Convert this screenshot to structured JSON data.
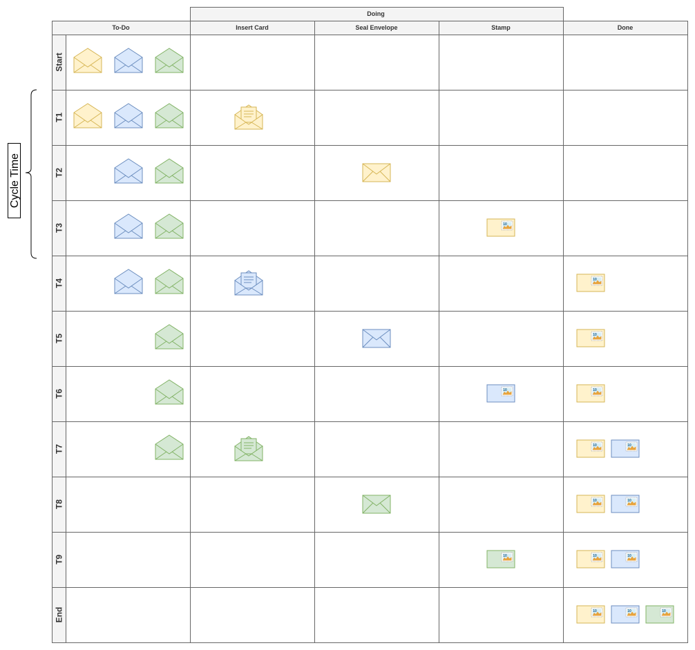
{
  "header": {
    "doing_label": "Doing",
    "columns": [
      "To-Do",
      "Insert Card",
      "Seal Envelope",
      "Stamp",
      "Done"
    ]
  },
  "cycle_time_label": "Cycle Time",
  "stamp_value": "10",
  "colors": {
    "yellow": {
      "fill": "#fff2cc",
      "stroke": "#d6b656"
    },
    "blue": {
      "fill": "#dae8fc",
      "stroke": "#6c8ebf"
    },
    "green": {
      "fill": "#d5e8d4",
      "stroke": "#82b366"
    },
    "grid": "#666666",
    "header_bg": "#f4f4f4"
  },
  "rows": [
    {
      "label": "Start",
      "todo": [
        "yellow",
        "blue",
        "green"
      ],
      "insert": null,
      "seal": null,
      "stamp": null,
      "done": []
    },
    {
      "label": "T1",
      "todo": [
        "yellow",
        "blue",
        "green"
      ],
      "insert": "yellow",
      "seal": null,
      "stamp": null,
      "done": []
    },
    {
      "label": "T2",
      "todo": [
        "blue",
        "green"
      ],
      "insert": null,
      "seal": "yellow",
      "stamp": null,
      "done": []
    },
    {
      "label": "T3",
      "todo": [
        "blue",
        "green"
      ],
      "insert": null,
      "seal": null,
      "stamp": "yellow",
      "done": []
    },
    {
      "label": "T4",
      "todo": [
        "blue",
        "green"
      ],
      "insert": "blue",
      "seal": null,
      "stamp": null,
      "done": [
        "yellow"
      ]
    },
    {
      "label": "T5",
      "todo": [
        "green"
      ],
      "insert": null,
      "seal": "blue",
      "stamp": null,
      "done": [
        "yellow"
      ]
    },
    {
      "label": "T6",
      "todo": [
        "green"
      ],
      "insert": null,
      "seal": null,
      "stamp": "blue",
      "done": [
        "yellow"
      ]
    },
    {
      "label": "T7",
      "todo": [
        "green"
      ],
      "insert": "green",
      "seal": null,
      "stamp": null,
      "done": [
        "yellow",
        "blue"
      ]
    },
    {
      "label": "T8",
      "todo": [],
      "insert": null,
      "seal": "green",
      "stamp": null,
      "done": [
        "yellow",
        "blue"
      ]
    },
    {
      "label": "T9",
      "todo": [],
      "insert": null,
      "seal": null,
      "stamp": "green",
      "done": [
        "yellow",
        "blue"
      ]
    },
    {
      "label": "End",
      "todo": [],
      "insert": null,
      "seal": null,
      "stamp": null,
      "done": [
        "yellow",
        "blue",
        "green"
      ]
    }
  ]
}
